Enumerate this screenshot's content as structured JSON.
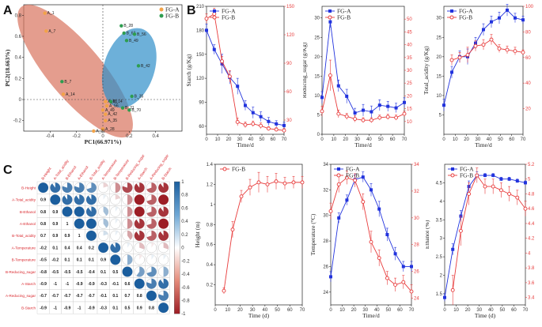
{
  "colors": {
    "blue": "#2233dd",
    "red": "#e83c3c",
    "pca_a": "#f2a348",
    "pca_b": "#2e9d4f",
    "ell_a": "#d9745e",
    "ell_b": "#2f8ec9"
  },
  "chart_data": [
    {
      "type": "scatter",
      "panel": "A",
      "xlabel": "PC1(66.971%)",
      "ylabel": "PC2(18.663%)",
      "xlim": [
        -0.6,
        0.6
      ],
      "ylim": [
        -0.3,
        0.9
      ],
      "legend": [
        "FG-A",
        "FG-B"
      ],
      "series": [
        {
          "name": "FG-A",
          "points": [
            {
              "label": "A_1",
              "x": -0.44,
              "y": 0.82
            },
            {
              "label": "A_7",
              "x": -0.43,
              "y": 0.65
            },
            {
              "label": "A_14",
              "x": -0.3,
              "y": 0.05
            },
            {
              "label": "A_63",
              "x": 0.02,
              "y": -0.02
            },
            {
              "label": "A_56",
              "x": 0.03,
              "y": -0.06
            },
            {
              "label": "A_49",
              "x": 0.0,
              "y": -0.1
            },
            {
              "label": "A_42",
              "x": 0.02,
              "y": -0.14
            },
            {
              "label": "A_35",
              "x": 0.02,
              "y": -0.2
            },
            {
              "label": "A_28",
              "x": 0.0,
              "y": -0.28
            },
            {
              "label": "A_21",
              "x": -0.07,
              "y": -0.3
            }
          ]
        },
        {
          "name": "FG-B",
          "points": [
            {
              "label": "B_7",
              "x": -0.31,
              "y": 0.17
            },
            {
              "label": "B_14",
              "x": 0.06,
              "y": -0.02
            },
            {
              "label": "B_35",
              "x": 0.22,
              "y": 0.03
            },
            {
              "label": "B_21",
              "x": 0.15,
              "y": -0.08
            },
            {
              "label": "B_70",
              "x": 0.2,
              "y": -0.1
            },
            {
              "label": "B_42",
              "x": 0.27,
              "y": 0.32
            },
            {
              "label": "B_28",
              "x": 0.14,
              "y": 0.7
            },
            {
              "label": "B_63",
              "x": 0.16,
              "y": 0.63
            },
            {
              "label": "B_49",
              "x": 0.18,
              "y": 0.56
            },
            {
              "label": "B_56",
              "x": 0.24,
              "y": 0.62
            }
          ]
        }
      ]
    },
    {
      "type": "line",
      "panel": "B1",
      "title": "Starch",
      "x": [
        0,
        7,
        14,
        21,
        28,
        35,
        42,
        49,
        56,
        63,
        70
      ],
      "xlabel": "Time/d",
      "xlim": [
        0,
        70
      ],
      "ylabel": "Starch (g/Kg)",
      "ylim": [
        50,
        210
      ],
      "yticks": [
        60,
        90,
        120,
        150,
        180,
        210
      ],
      "ylabel2": "",
      "ylim2": [
        15,
        150
      ],
      "yticks2": [
        30,
        60,
        90,
        120,
        150
      ],
      "legend": [
        "FG-A",
        "FG-B"
      ],
      "series": [
        {
          "name": "FG-A",
          "axis": "left",
          "values": [
            180,
            156,
            138,
            121,
            110,
            86,
            77,
            72,
            66,
            63,
            61
          ],
          "errors": [
            8,
            6,
            12,
            8,
            10,
            6,
            7,
            6,
            5,
            4,
            4
          ]
        },
        {
          "name": "FG-B",
          "axis": "right",
          "values": [
            137,
            142,
            92,
            76,
            28,
            25,
            26,
            24,
            21,
            20,
            19
          ],
          "errors": [
            5,
            6,
            5,
            6,
            4,
            3,
            3,
            3,
            2,
            2,
            2
          ]
        }
      ]
    },
    {
      "type": "line",
      "panel": "B2",
      "title": "Reducing sugar",
      "x": [
        0,
        7,
        14,
        21,
        28,
        35,
        42,
        49,
        56,
        63,
        70
      ],
      "xlabel": "Time/d",
      "xlim": [
        0,
        70
      ],
      "ylabel": "Reducing_sugar (g/Kg)",
      "ylim": [
        0,
        33
      ],
      "yticks": [
        0,
        5,
        10,
        15,
        20,
        25,
        30
      ],
      "ylabel2": "",
      "ylim2": [
        5,
        55
      ],
      "yticks2": [
        10,
        15,
        20,
        25,
        30,
        35,
        40,
        45,
        50
      ],
      "legend": [
        "FG-A",
        "FG-B"
      ],
      "series": [
        {
          "name": "FG-A",
          "axis": "left",
          "values": [
            9.5,
            29,
            12.5,
            9.8,
            5.5,
            6.2,
            5.8,
            7.5,
            7.2,
            6.8,
            8.2
          ],
          "errors": [
            1.5,
            1.5,
            1.5,
            1.8,
            1.2,
            1.5,
            1.5,
            1.4,
            1.3,
            1.2,
            1.2
          ]
        },
        {
          "name": "FG-B",
          "axis": "right",
          "values": [
            14,
            28,
            13,
            12,
            11,
            10.5,
            10.5,
            11.5,
            11.8,
            11.5,
            13
          ],
          "errors": [
            2,
            6,
            1.5,
            1.2,
            1.2,
            1,
            1,
            1,
            1,
            1,
            1
          ]
        }
      ]
    },
    {
      "type": "line",
      "panel": "B3",
      "title": "Total acidity",
      "x": [
        0,
        7,
        14,
        21,
        28,
        35,
        42,
        49,
        56,
        63,
        70
      ],
      "xlabel": "Time/d",
      "xlim": [
        0,
        70
      ],
      "ylabel": "Total_acidity (g/Kg)",
      "ylim": [
        0,
        33
      ],
      "yticks": [
        5,
        10,
        15,
        20,
        25,
        30
      ],
      "ylabel2": "",
      "ylim2": [
        0,
        100
      ],
      "yticks2": [
        20,
        40,
        60,
        80,
        100
      ],
      "legend": [
        "FG-A",
        "FG-B"
      ],
      "series": [
        {
          "name": "FG-A",
          "axis": "left",
          "values": [
            7.5,
            16,
            20,
            20,
            23.5,
            27,
            29,
            30,
            32,
            30,
            29.5
          ],
          "errors": [
            1.5,
            1.5,
            1.5,
            2,
            1.5,
            1.5,
            1.5,
            1.5,
            1.5,
            1.2,
            1
          ]
        },
        {
          "name": "FG-B",
          "axis": "right",
          "values": [
            null,
            58,
            60,
            62,
            69,
            70,
            74,
            67,
            66,
            65,
            64
          ],
          "errors": [
            0,
            4,
            4,
            6,
            4,
            4,
            4,
            3,
            3,
            3,
            2
          ]
        }
      ]
    },
    {
      "type": "heatmap",
      "panel": "C",
      "subtype": "correlation",
      "labels": [
        "B-Height",
        "A-Total_acidity",
        "B-Ethanol",
        "A-Ethanol",
        "B-Total_acidity",
        "A-Temperature",
        "B-Temperature",
        "B-Reducing_sugar",
        "A-Starch",
        "A-Reducing_sugar",
        "B-Starch"
      ],
      "colorbar_ticks": [
        "1",
        "0.8",
        "0.6",
        "0.4",
        "0.2",
        "0",
        "-0.2",
        "-0.4",
        "-0.6",
        "-0.8",
        "-1"
      ],
      "matrix": [
        [
          1,
          0.9,
          0.8,
          0.8,
          0.7,
          -0.2,
          -0.5,
          -0.8,
          -0.9,
          -0.7,
          -0.9
        ],
        [
          0.9,
          1,
          0.9,
          0.9,
          0.9,
          0.1,
          -0.2,
          -0.5,
          -1,
          -0.7,
          -1
        ],
        [
          0.8,
          0.9,
          1,
          1,
          0.9,
          0.4,
          0.1,
          -0.5,
          -1,
          -0.7,
          -0.9
        ],
        [
          0.8,
          0.9,
          1,
          1,
          1,
          0.4,
          0.1,
          -0.5,
          -0.9,
          -0.7,
          -1
        ],
        [
          0.7,
          0.9,
          0.9,
          1,
          1,
          0.2,
          0.1,
          -0.4,
          -0.9,
          -0.7,
          -0.9
        ],
        [
          -0.2,
          0.1,
          0.4,
          0.4,
          0.2,
          1,
          0.9,
          0.1,
          -0.3,
          -0.1,
          -0.3
        ],
        [
          -0.5,
          -0.2,
          0.1,
          0.1,
          0.1,
          0.9,
          1,
          0.5,
          -0.1,
          0.1,
          0.1
        ],
        [
          -0.8,
          -0.5,
          -0.5,
          -0.5,
          -0.4,
          0.1,
          0.5,
          1,
          0.6,
          0.7,
          0.5
        ],
        [
          -0.9,
          -1,
          -1,
          -0.9,
          -0.9,
          -0.3,
          -0.1,
          0.6,
          1,
          0.8,
          0.9
        ],
        [
          -0.7,
          -0.7,
          -0.7,
          -0.7,
          -0.7,
          -0.1,
          0.1,
          0.7,
          0.8,
          1,
          0.8
        ],
        [
          -0.9,
          -1,
          -0.9,
          -1,
          -0.9,
          -0.3,
          0.1,
          0.5,
          0.9,
          0.8,
          1
        ]
      ]
    },
    {
      "type": "line",
      "panel": "D1",
      "title": "Height",
      "x": [
        7,
        14,
        21,
        28,
        35,
        42,
        49,
        56,
        63,
        70
      ],
      "xlabel": "Time (d)",
      "xlim": [
        0,
        70
      ],
      "ylabel": "Height (m)",
      "ylim": [
        0,
        1.4
      ],
      "yticks": [
        0.2,
        0.4,
        0.6,
        0.8,
        1.0,
        1.2,
        1.4
      ],
      "legend": [
        "FG-B"
      ],
      "series": [
        {
          "name": "FG-B",
          "axis": "left",
          "values": [
            0.14,
            0.75,
            1.08,
            1.17,
            1.22,
            1.2,
            1.23,
            1.21,
            1.22,
            1.22
          ],
          "errors": [
            0.03,
            0.08,
            0.06,
            0.08,
            0.1,
            0.08,
            0.08,
            0.06,
            0.06,
            0.06
          ]
        }
      ]
    },
    {
      "type": "line",
      "panel": "D2",
      "title": "Temperature",
      "x": [
        0,
        7,
        14,
        21,
        28,
        35,
        42,
        49,
        56,
        63,
        70
      ],
      "xlabel": "Time/d",
      "xlim": [
        0,
        70
      ],
      "ylabel": "Temperature (°C)",
      "ylim": [
        23,
        34
      ],
      "yticks": [
        24,
        26,
        28,
        30,
        32,
        34
      ],
      "ylabel2": "",
      "ylim2": [
        23.5,
        34
      ],
      "yticks2": [
        24,
        26,
        28,
        30,
        32,
        34
      ],
      "legend": [
        "FG-A",
        "FG-B"
      ],
      "series": [
        {
          "name": "FG-A",
          "axis": "left",
          "values": [
            25.2,
            29.8,
            31.2,
            32.8,
            33.0,
            32.0,
            30.5,
            28.5,
            27.0,
            26.0,
            26.0
          ],
          "errors": [
            0.4,
            0.4,
            0.4,
            0.4,
            0.4,
            0.5,
            0.6,
            0.5,
            0.5,
            0.4,
            0.4
          ]
        },
        {
          "name": "FG-B",
          "axis": "right",
          "values": [
            30.5,
            32.5,
            33.0,
            32.8,
            31.2,
            28.2,
            27.0,
            25.5,
            25.0,
            25.2,
            24.5
          ],
          "errors": [
            0.6,
            0.6,
            0.5,
            0.5,
            0.6,
            0.8,
            0.6,
            0.5,
            0.5,
            0.5,
            0.5
          ]
        }
      ]
    },
    {
      "type": "line",
      "panel": "D3",
      "title": "Ethanol",
      "x": [
        0,
        7,
        14,
        21,
        28,
        35,
        42,
        49,
        56,
        63,
        70
      ],
      "xlabel": "Time (d)",
      "xlim": [
        0,
        70
      ],
      "ylabel": "Ethanol (%)",
      "ylim": [
        1.2,
        5.0
      ],
      "yticks": [
        1.5,
        2.0,
        2.5,
        3.0,
        3.5,
        4.0,
        4.5
      ],
      "ylabel2": "",
      "ylim2": [
        3.3,
        5.2
      ],
      "yticks2": [
        3.4,
        3.6,
        3.8,
        4.0,
        4.2,
        4.4,
        4.6,
        4.8,
        5.0,
        5.2
      ],
      "legend": [
        "FG-A",
        "FG-B"
      ],
      "series": [
        {
          "name": "FG-A",
          "axis": "left",
          "values": [
            1.4,
            2.7,
            3.6,
            4.4,
            4.7,
            4.7,
            4.7,
            4.6,
            4.6,
            4.55,
            4.5
          ],
          "errors": [
            0.1,
            0.15,
            0.15,
            0.15,
            0.1,
            0.05,
            0.05,
            0.05,
            0.05,
            0.05,
            0.05
          ]
        },
        {
          "name": "FG-B",
          "axis": "right",
          "values": [
            null,
            3.5,
            4.3,
            4.8,
            5.05,
            4.9,
            4.9,
            4.85,
            4.8,
            4.75,
            4.6
          ],
          "errors": [
            0,
            0.2,
            0.2,
            0.15,
            0.1,
            0.1,
            0.1,
            0.1,
            0.1,
            0.1,
            0.1
          ]
        }
      ]
    }
  ]
}
